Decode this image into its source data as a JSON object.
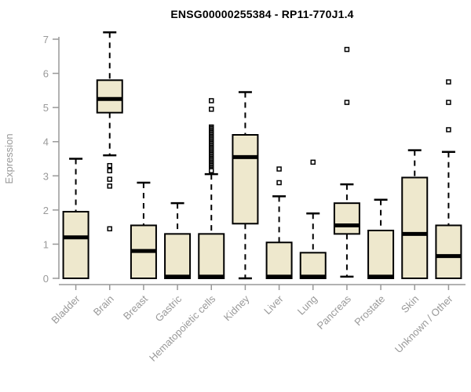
{
  "chart_data": {
    "type": "boxplot",
    "title": "ENSG00000255384 - RP11-770J1.4",
    "ylabel": "Expression",
    "xlabel": "",
    "ylim": [
      0,
      7
    ],
    "yticks": [
      0,
      1,
      2,
      3,
      4,
      5,
      6,
      7
    ],
    "grid": false,
    "legend": "none",
    "categories": [
      "Bladder",
      "Brain",
      "Breast",
      "Gastric",
      "Hematopoietic cells",
      "Kidney",
      "Liver",
      "Lung",
      "Pancreas",
      "Prostate",
      "Skin",
      "Unknown / Other"
    ],
    "series": [
      {
        "name": "Bladder",
        "low": 0,
        "q1": 0,
        "median": 1.2,
        "q3": 1.95,
        "high": 3.5,
        "outliers": []
      },
      {
        "name": "Brain",
        "low": 3.6,
        "q1": 4.85,
        "median": 5.25,
        "q3": 5.8,
        "high": 7.2,
        "outliers": [
          3.3,
          3.15,
          2.9,
          2.7,
          1.45
        ]
      },
      {
        "name": "Breast",
        "low": 0,
        "q1": 0,
        "median": 0.8,
        "q3": 1.55,
        "high": 2.8,
        "outliers": []
      },
      {
        "name": "Gastric",
        "low": 0,
        "q1": 0,
        "median": 0.05,
        "q3": 1.3,
        "high": 2.2,
        "outliers": []
      },
      {
        "name": "Hematopoietic cells",
        "low": 0,
        "q1": 0,
        "median": 0.05,
        "q3": 1.3,
        "high": 3.05,
        "outliers": [
          5.2,
          4.95,
          4.43,
          4.39,
          4.35,
          4.31,
          4.27,
          4.23,
          4.19,
          4.15,
          4.11,
          4.07,
          4.03,
          3.99,
          3.95,
          3.91,
          3.87,
          3.83,
          3.79,
          3.75,
          3.71,
          3.67,
          3.63,
          3.59,
          3.55,
          3.51,
          3.47,
          3.43,
          3.39,
          3.35,
          3.31,
          3.27,
          3.23,
          3.19,
          3.15
        ]
      },
      {
        "name": "Kidney",
        "low": 0,
        "q1": 1.6,
        "median": 3.55,
        "q3": 4.2,
        "high": 5.45,
        "outliers": []
      },
      {
        "name": "Liver",
        "low": 0,
        "q1": 0,
        "median": 0.05,
        "q3": 1.05,
        "high": 2.4,
        "outliers": [
          3.2,
          2.8
        ]
      },
      {
        "name": "Lung",
        "low": 0,
        "q1": 0,
        "median": 0.05,
        "q3": 0.75,
        "high": 1.9,
        "outliers": [
          3.4
        ]
      },
      {
        "name": "Pancreas",
        "low": 0.05,
        "q1": 1.3,
        "median": 1.55,
        "q3": 2.2,
        "high": 2.75,
        "outliers": [
          6.7,
          5.15
        ]
      },
      {
        "name": "Prostate",
        "low": 0,
        "q1": 0,
        "median": 0.05,
        "q3": 1.4,
        "high": 2.3,
        "outliers": []
      },
      {
        "name": "Skin",
        "low": 0,
        "q1": 0,
        "median": 1.3,
        "q3": 2.95,
        "high": 3.75,
        "outliers": []
      },
      {
        "name": "Unknown / Other",
        "low": 0,
        "q1": 0,
        "median": 0.65,
        "q3": 1.55,
        "high": 3.7,
        "outliers": [
          5.75,
          5.15,
          4.35
        ]
      }
    ],
    "colors": {
      "background": "#FFFFFF",
      "box_fill": "#EEE8CD",
      "box_border": "#000000",
      "median": "#000000",
      "whisker": "#000000",
      "outlier_stroke": "#000000",
      "outlier_fill": "#FFFFFF",
      "axis": "#999999",
      "tick_label": "#999999",
      "axis_label": "#999999",
      "title": "#000000"
    },
    "style_hints": {
      "whisker_line": "dashed",
      "outlier_marker": "open-square",
      "x_label_rotation_deg": 45
    }
  }
}
